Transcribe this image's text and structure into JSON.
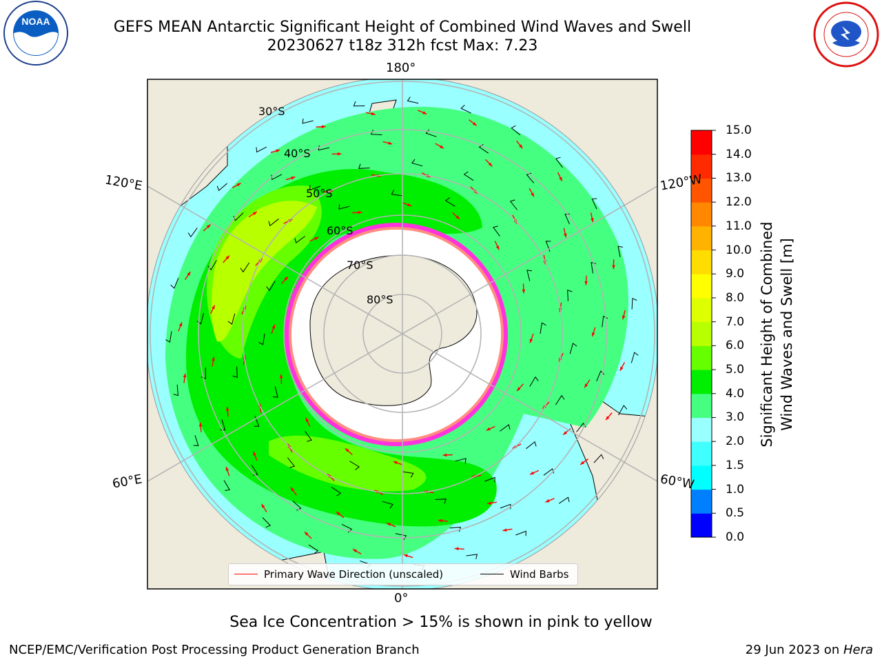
{
  "header": {
    "title_line1": "GEFS MEAN Antarctic Significant Height of Combined Wind Waves and Swell",
    "title_line2": "20230627 t18z 312h fcst   Max: 7.23",
    "logo_left": {
      "text": "NOAA",
      "icon": "noaa-logo-icon"
    },
    "logo_right": {
      "icon": "nws-logo-icon"
    }
  },
  "map": {
    "projection": "south-polar-stereographic",
    "longitude_labels": {
      "top": "180°",
      "bottom": "0°",
      "upper_left": "120°E",
      "lower_left": "60°E",
      "upper_right": "120°W",
      "lower_right": "60°W"
    },
    "latitude_labels": [
      "30°S",
      "40°S",
      "50°S",
      "60°S",
      "70°S",
      "80°S"
    ],
    "colors": {
      "land": "#efebdc",
      "ice_free_ocean": "#ffffff",
      "sea_ice": "#ff33dd",
      "arrow": "#ff0000",
      "barb": "#000000",
      "grid": "#b4b4b4"
    }
  },
  "legend": {
    "items": [
      {
        "label": "Primary Wave Direction (unscaled)",
        "color": "#ff0000"
      },
      {
        "label": "Wind Barbs",
        "color": "#000000"
      }
    ]
  },
  "colorbar": {
    "label_line1": "Significant Height of Combined",
    "label_line2": "Wind Waves and Swell [m]",
    "ticks": [
      "0.0",
      "0.5",
      "1.0",
      "1.5",
      "2.0",
      "3.0",
      "4.0",
      "5.0",
      "6.0",
      "7.0",
      "8.0",
      "9.0",
      "10.0",
      "11.0",
      "12.0",
      "13.0",
      "14.0",
      "15.0"
    ],
    "bin_colors": [
      "#0000ff",
      "#0080ff",
      "#00ffff",
      "#40ffff",
      "#99ffff",
      "#45ff80",
      "#00ee00",
      "#66ff00",
      "#b8ff00",
      "#ddff00",
      "#ffff00",
      "#ffdd00",
      "#ffb300",
      "#ff8800",
      "#ff5500",
      "#ff2a00",
      "#ff0000"
    ]
  },
  "subtitle": "Sea Ice Concentration > 15% is shown in pink to yellow",
  "footer": {
    "left": "NCEP/EMC/Verification Post Processing Product Generation Branch",
    "right_prefix": "29 Jun 2023 on ",
    "right_host": "Hera"
  }
}
